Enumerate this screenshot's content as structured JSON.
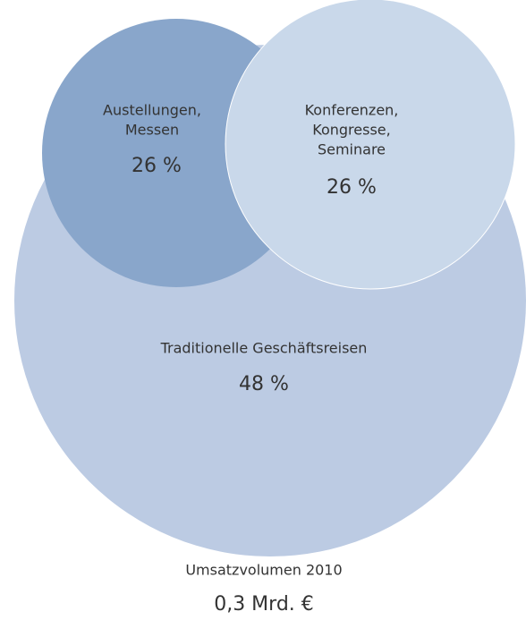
{
  "chart_data": {
    "type": "bubble",
    "categories": [
      [
        "Austellungen,",
        "Messen"
      ],
      [
        "Konferenzen,",
        "Kongresse,",
        "Seminare"
      ],
      [
        "Traditionelle Geschäftsreisen"
      ]
    ],
    "values": [
      26,
      26,
      48
    ],
    "value_labels": [
      "26 %",
      "26 %",
      "48 %"
    ],
    "colors": [
      "#89a6cb",
      "#c9d8ea",
      "#bccbe3"
    ],
    "annotations": [
      "Umsatzvolumen 2010",
      "0,3 Mrd. €"
    ]
  }
}
